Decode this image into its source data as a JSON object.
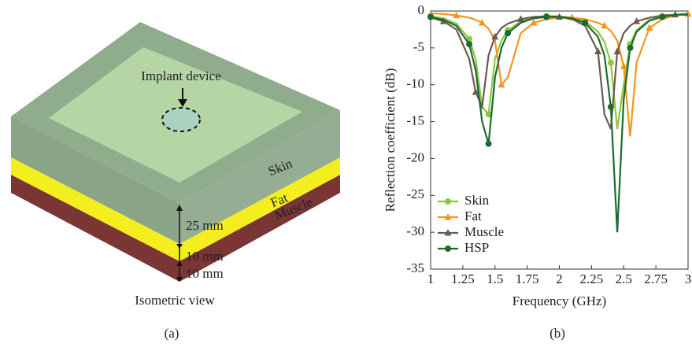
{
  "diagram": {
    "implant_label": "Implant device",
    "layers": [
      "Skin",
      "Fat",
      "Muscle"
    ],
    "dimensions": [
      "25 mm",
      "10 mm",
      "10 mm"
    ],
    "view_label": "Isometric view"
  },
  "captions": [
    "(a)",
    "(b)"
  ],
  "chart_data": {
    "type": "line",
    "xlabel": "Frequency (GHz)",
    "ylabel": "Reflection coefficient (dB)",
    "x": [
      1.0,
      1.1,
      1.2,
      1.3,
      1.35,
      1.4,
      1.45,
      1.5,
      1.55,
      1.6,
      1.7,
      1.8,
      1.9,
      2.0,
      2.1,
      2.2,
      2.3,
      2.35,
      2.4,
      2.45,
      2.5,
      2.55,
      2.6,
      2.7,
      2.8,
      2.9,
      3.0
    ],
    "series": [
      {
        "name": "Skin",
        "color": "#8dc63f",
        "marker": "circle",
        "values": [
          -0.7,
          -1,
          -1.7,
          -3.8,
          -6.5,
          -13,
          -14,
          -6.5,
          -4,
          -2.6,
          -1.4,
          -0.9,
          -0.7,
          -0.7,
          -0.9,
          -1.4,
          -2.8,
          -4.2,
          -7,
          -16,
          -10,
          -4.5,
          -2.6,
          -1.2,
          -0.7,
          -0.5,
          -0.4
        ]
      },
      {
        "name": "Fat",
        "color": "#f7941d",
        "marker": "triangle",
        "values": [
          -0.3,
          -0.4,
          -0.6,
          -0.9,
          -1.2,
          -1.6,
          -2.4,
          -4,
          -10,
          -9,
          -3,
          -1.6,
          -1.1,
          -0.9,
          -0.9,
          -1.1,
          -1.6,
          -2,
          -2.7,
          -4,
          -7.5,
          -17,
          -7,
          -2.3,
          -1.1,
          -0.6,
          -0.4
        ]
      },
      {
        "name": "Muscle",
        "color": "#6d5a4f",
        "marker": "triangle",
        "values": [
          -0.9,
          -1.4,
          -2.5,
          -6.5,
          -11,
          -13,
          -6,
          -3.5,
          -2.3,
          -1.7,
          -1.1,
          -0.8,
          -0.7,
          -0.8,
          -1.1,
          -2,
          -5.5,
          -14,
          -16,
          -5.5,
          -3,
          -2,
          -1.4,
          -0.9,
          -0.6,
          -0.5,
          -0.4
        ]
      },
      {
        "name": "HSP",
        "color": "#1a6b2f",
        "marker": "circle",
        "values": [
          -0.8,
          -1.2,
          -2,
          -4.5,
          -8,
          -15,
          -18,
          -9,
          -5,
          -3,
          -1.6,
          -1,
          -0.8,
          -0.8,
          -1,
          -1.6,
          -3.5,
          -6,
          -13,
          -30,
          -12,
          -5,
          -2.8,
          -1.3,
          -0.8,
          -0.5,
          -0.5
        ]
      }
    ],
    "xlim": [
      1,
      3
    ],
    "xticks": [
      1,
      1.25,
      1.5,
      1.75,
      2,
      2.25,
      2.5,
      2.75,
      3
    ],
    "ylim": [
      -35,
      0
    ],
    "yticks": [
      0,
      -5,
      -10,
      -15,
      -20,
      -25,
      -30,
      -35
    ],
    "legend": "lower left"
  }
}
